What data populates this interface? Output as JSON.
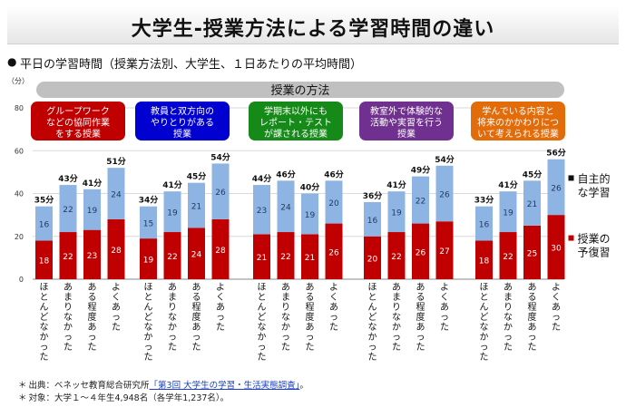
{
  "title": "大学生-授業方法による学習時間の違い",
  "subtitle": "平日の学習時間（授業方法別、大学生、１日あたりの平均時間）",
  "unit_label": "（分）",
  "footnotes": {
    "source_prefix": "出典：ベネッセ教育総合研究所",
    "source_link": "「第3回 大学生の学習・生活実態調査」",
    "source_suffix": "。",
    "target": "対象：大学１～４年生4,948名（各学年1,237名）。"
  },
  "colors": {
    "prep": "#c00000",
    "self": "#8eb4e3",
    "header_bar": "#c0c0c0",
    "group1": "#c00000",
    "group2": "#0000d0",
    "group3": "#158a18",
    "group4": "#70308f",
    "group5": "#e36c0a"
  },
  "chart_data": {
    "type": "bar",
    "stacked": true,
    "title": "",
    "ylabel": "",
    "ylim": [
      0,
      80
    ],
    "yticks": [
      0,
      20,
      40,
      60,
      80
    ],
    "header": "授業の方法",
    "total_suffix": "分",
    "categories": [
      "ほとんどなかった",
      "あまりなかった",
      "ある程度あった",
      "よくあった"
    ],
    "groups": [
      {
        "label": "グループワークなどの協同作業をする授業",
        "label_lines": [
          "グループワーク",
          "などの協同作業",
          "をする授業"
        ],
        "color_key": "group1",
        "prep": [
          18,
          22,
          23,
          28
        ],
        "self": [
          16,
          22,
          19,
          24
        ],
        "totals": [
          35,
          43,
          41,
          51
        ]
      },
      {
        "label": "教員と双方向のやりとりがある授業",
        "label_lines": [
          "教員と双方向の",
          "やりとりがある",
          "授業"
        ],
        "color_key": "group2",
        "prep": [
          19,
          22,
          24,
          28
        ],
        "self": [
          15,
          19,
          21,
          26
        ],
        "totals": [
          34,
          41,
          45,
          54
        ]
      },
      {
        "label": "学期末以外にもレポート・テストが課される授業",
        "label_lines": [
          "学期末以外にも",
          "レポート・テスト",
          "が課される授業"
        ],
        "color_key": "group3",
        "prep": [
          21,
          22,
          21,
          26
        ],
        "self": [
          23,
          24,
          19,
          20
        ],
        "totals": [
          44,
          46,
          40,
          46
        ]
      },
      {
        "label": "教室外で体験的な活動や実習を行う授業",
        "label_lines": [
          "教室外で体験的な",
          "活動や実習を行う",
          "授業"
        ],
        "color_key": "group4",
        "prep": [
          20,
          22,
          26,
          27
        ],
        "self": [
          16,
          19,
          22,
          26
        ],
        "totals": [
          36,
          41,
          49,
          54
        ]
      },
      {
        "label": "学んでいる内容と将来のかかわりについて考えられる授業",
        "label_lines": [
          "学んでいる内容と",
          "将来のかかわりにつ",
          "いて考えられる授業"
        ],
        "color_key": "group5",
        "prep": [
          18,
          22,
          25,
          30
        ],
        "self": [
          16,
          19,
          21,
          26
        ],
        "totals": [
          33,
          41,
          45,
          56
        ]
      }
    ],
    "series": [
      {
        "key": "self",
        "name": "自主的な学習",
        "name_lines": [
          "自主的",
          "な学習"
        ],
        "color_key": "self"
      },
      {
        "key": "prep",
        "name": "授業の予復習",
        "name_lines": [
          "授業の",
          "予復習"
        ],
        "color_key": "prep"
      }
    ]
  }
}
